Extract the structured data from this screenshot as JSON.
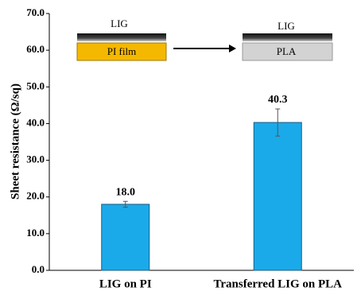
{
  "chart_data": {
    "type": "bar",
    "ylabel": "Sheet resistance (Ω/sq)",
    "categories": [
      "LIG on PI",
      "Transferred LIG on PLA"
    ],
    "values": [
      18.0,
      40.3
    ],
    "value_labels": [
      "18.0",
      "40.3"
    ],
    "errors": [
      0.8,
      3.7
    ],
    "color": "#1aaaea",
    "ylim": [
      0,
      70
    ],
    "yticks": [
      {
        "value": 0,
        "label": "0.0"
      },
      {
        "value": 10,
        "label": "10.0"
      },
      {
        "value": 20,
        "label": "20.0"
      },
      {
        "value": 30,
        "label": "30.0"
      },
      {
        "value": 40,
        "label": "40.0"
      },
      {
        "value": 50,
        "label": "50.0"
      },
      {
        "value": 60,
        "label": "60.0"
      },
      {
        "value": 70,
        "label": "70.0"
      }
    ],
    "annotations": [
      "LIG",
      "PI film",
      "LIG",
      "PLA"
    ]
  }
}
